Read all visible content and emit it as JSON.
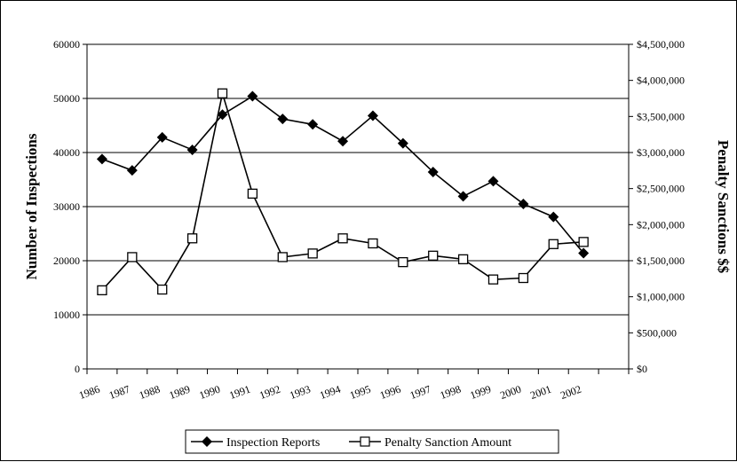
{
  "chart_data": {
    "type": "line",
    "title": "",
    "categories": [
      "1986",
      "1987",
      "1988",
      "1989",
      "1990",
      "1991",
      "1992",
      "1993",
      "1994",
      "1995",
      "1996",
      "1997",
      "1998",
      "1999",
      "2000",
      "2001",
      "2002"
    ],
    "left_axis": {
      "label": "Number of Inspections",
      "ylim": [
        0,
        60000
      ],
      "ticks": [
        "0",
        "10000",
        "20000",
        "30000",
        "40000",
        "50000",
        "60000"
      ]
    },
    "right_axis": {
      "label": "Penalty Sanctions $$",
      "ylim": [
        0,
        4500000
      ],
      "ticks": [
        "$0",
        "$500,000",
        "$1,000,000",
        "$1,500,000",
        "$2,000,000",
        "$2,500,000",
        "$3,000,000",
        "$3,500,000",
        "$4,000,000",
        "$4,500,000"
      ]
    },
    "grid": "horizontal",
    "legend_position": "bottom",
    "series": [
      {
        "name": "Inspection Reports",
        "axis": "left",
        "marker": "filled-diamond",
        "color": "#000000",
        "values": [
          38800,
          36700,
          42800,
          40500,
          47000,
          50400,
          46200,
          45200,
          42100,
          46800,
          41700,
          36400,
          31900,
          34700,
          30500,
          28100,
          21400
        ]
      },
      {
        "name": "Penalty Sanction Amount",
        "axis": "right",
        "marker": "open-square",
        "color": "#000000",
        "values": [
          1090000,
          1550000,
          1100000,
          1810000,
          3820000,
          2430000,
          1550000,
          1600000,
          1810000,
          1740000,
          1480000,
          1570000,
          1520000,
          1240000,
          1260000,
          1730000,
          1760000
        ]
      }
    ]
  }
}
